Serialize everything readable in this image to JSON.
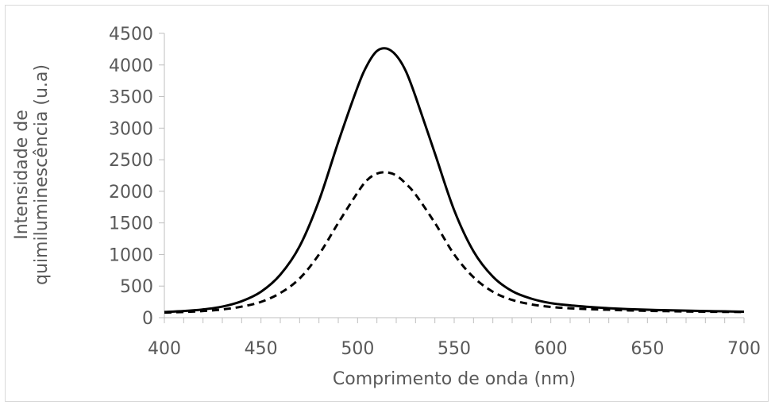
{
  "chart_data": {
    "type": "line",
    "title": "",
    "xlabel": "Comprimento de onda (nm)",
    "ylabel_lines": [
      "Intensidade de",
      "quimiluminescência (u.a)"
    ],
    "xlim": [
      400,
      700
    ],
    "ylim": [
      0,
      4500
    ],
    "x_ticks": [
      400,
      450,
      500,
      550,
      600,
      650,
      700
    ],
    "y_ticks": [
      0,
      500,
      1000,
      1500,
      2000,
      2500,
      3000,
      3500,
      4000,
      4500
    ],
    "x_minor_step": 10,
    "grid": false,
    "legend": "none",
    "series": [
      {
        "style": "solid",
        "color": "#000000",
        "x": [
          400,
          410,
          420,
          430,
          440,
          450,
          460,
          470,
          480,
          490,
          500,
          505,
          510,
          515,
          520,
          525,
          530,
          540,
          550,
          560,
          570,
          580,
          590,
          600,
          610,
          620,
          630,
          640,
          650,
          660,
          670,
          680,
          690,
          700
        ],
        "y": [
          90,
          105,
          130,
          175,
          260,
          410,
          680,
          1130,
          1850,
          2780,
          3650,
          4000,
          4220,
          4260,
          4150,
          3900,
          3500,
          2600,
          1700,
          1050,
          650,
          420,
          300,
          230,
          195,
          170,
          150,
          135,
          125,
          118,
          112,
          105,
          100,
          95
        ]
      },
      {
        "style": "dashed",
        "color": "#000000",
        "x": [
          400,
          410,
          420,
          430,
          440,
          450,
          460,
          470,
          480,
          490,
          500,
          505,
          510,
          515,
          520,
          525,
          530,
          540,
          550,
          560,
          570,
          580,
          590,
          600,
          610,
          620,
          630,
          640,
          650,
          660,
          670,
          680,
          690,
          700
        ],
        "y": [
          80,
          90,
          105,
          130,
          175,
          250,
          390,
          620,
          1000,
          1500,
          1980,
          2180,
          2280,
          2300,
          2250,
          2120,
          1950,
          1500,
          1000,
          640,
          410,
          280,
          210,
          170,
          148,
          135,
          125,
          115,
          108,
          103,
          98,
          94,
          91,
          90
        ]
      }
    ]
  }
}
